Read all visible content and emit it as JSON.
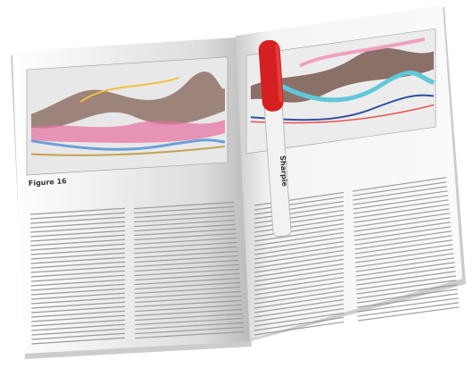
{
  "figure_caption": "Figure 16",
  "marker_label": "Sharpie"
}
